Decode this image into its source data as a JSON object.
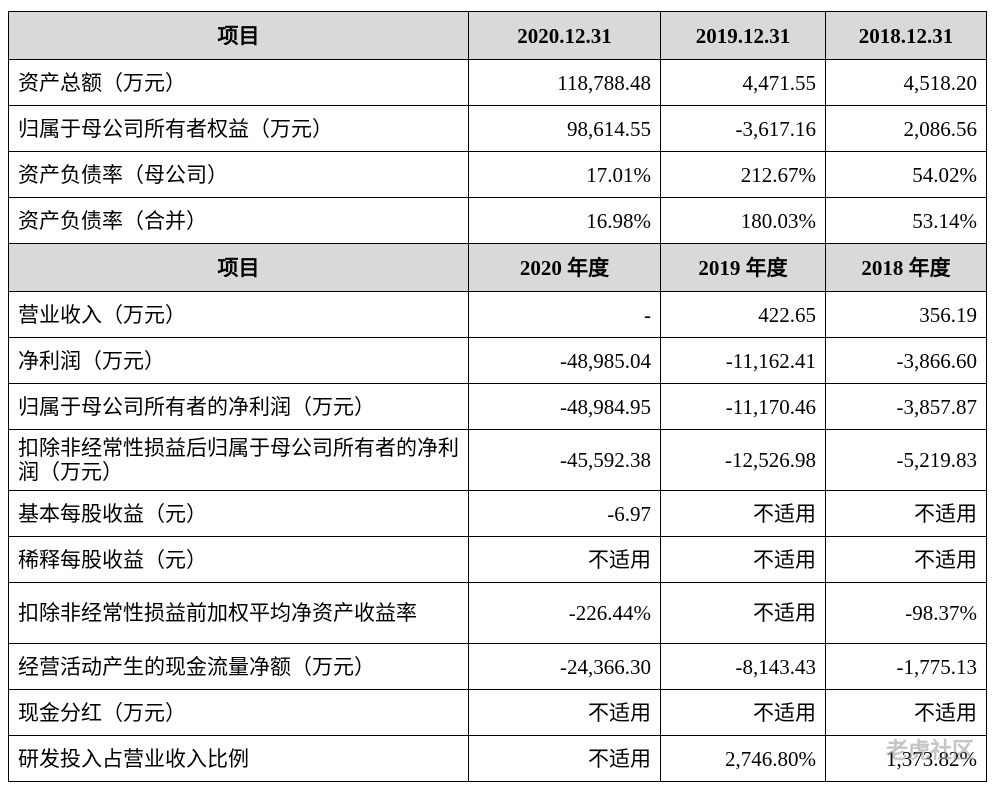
{
  "table": {
    "sections": [
      {
        "header": [
          "项目",
          "2020.12.31",
          "2019.12.31",
          "2018.12.31"
        ],
        "rows": [
          [
            "资产总额（万元）",
            "118,788.48",
            "4,471.55",
            "4,518.20"
          ],
          [
            "归属于母公司所有者权益（万元）",
            "98,614.55",
            "-3,617.16",
            "2,086.56"
          ],
          [
            "资产负债率（母公司）",
            "17.01%",
            "212.67%",
            "54.02%"
          ],
          [
            "资产负债率（合并）",
            "16.98%",
            "180.03%",
            "53.14%"
          ]
        ]
      },
      {
        "header": [
          "项目",
          "2020 年度",
          "2019 年度",
          "2018 年度"
        ],
        "rows": [
          [
            "营业收入（万元）",
            "-",
            "422.65",
            "356.19"
          ],
          [
            "净利润（万元）",
            "-48,985.04",
            "-11,162.41",
            "-3,866.60"
          ],
          [
            "归属于母公司所有者的净利润（万元）",
            "-48,984.95",
            "-11,170.46",
            "-3,857.87"
          ],
          [
            "扣除非经常性损益后归属于母公司所有者的净利润（万元）",
            "-45,592.38",
            "-12,526.98",
            "-5,219.83"
          ],
          [
            "基本每股收益（元）",
            "-6.97",
            "不适用",
            "不适用"
          ],
          [
            "稀释每股收益（元）",
            "不适用",
            "不适用",
            "不适用"
          ],
          [
            "扣除非经常性损益前加权平均净资产收益率",
            "-226.44%",
            "不适用",
            "-98.37%"
          ],
          [
            "经营活动产生的现金流量净额（万元）",
            "-24,366.30",
            "-8,143.43",
            "-1,775.13"
          ],
          [
            "现金分红（万元）",
            "不适用",
            "不适用",
            "不适用"
          ],
          [
            "研发投入占营业收入比例",
            "不适用",
            "2,746.80%",
            "1,373.82%"
          ]
        ]
      }
    ]
  },
  "watermark": "老虎社区"
}
